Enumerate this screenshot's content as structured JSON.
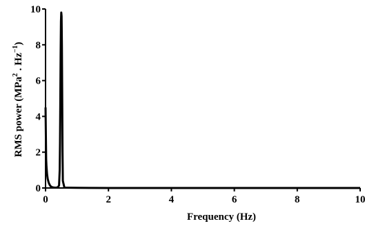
{
  "chart_data": {
    "type": "line",
    "title": "",
    "xlabel": "Frequency (Hz)",
    "ylabel_parts": {
      "main": "RMS power (MPa",
      "sup1": "2",
      "mid": " . Hz",
      "sup2": "−1",
      "end": ")"
    },
    "xlim": [
      0,
      10
    ],
    "ylim": [
      0,
      10
    ],
    "x_ticks": [
      0,
      2,
      4,
      6,
      8,
      10
    ],
    "y_ticks": [
      0,
      2,
      4,
      6,
      8,
      10
    ],
    "grid": false,
    "legend": "none",
    "line_color": "#000000",
    "series": [
      {
        "x": [
          0.0,
          0.01,
          0.02,
          0.03,
          0.05,
          0.07,
          0.1,
          0.13,
          0.16,
          0.2,
          0.25,
          0.3,
          0.35,
          0.4,
          0.43,
          0.45,
          0.46,
          0.47,
          0.48,
          0.49,
          0.5,
          0.51,
          0.52,
          0.53,
          0.54,
          0.55,
          0.6,
          1.0,
          2.0,
          4.0,
          6.0,
          8.0,
          10.0
        ],
        "values": [
          4.5,
          3.0,
          1.6,
          1.2,
          0.75,
          0.5,
          0.3,
          0.18,
          0.1,
          0.05,
          0.03,
          0.02,
          0.02,
          0.05,
          0.15,
          1.0,
          2.5,
          5.0,
          7.5,
          9.3,
          9.8,
          9.6,
          8.0,
          5.0,
          2.0,
          0.4,
          0.02,
          0.01,
          0.0,
          0.0,
          0.0,
          0.0,
          0.0
        ]
      }
    ]
  }
}
